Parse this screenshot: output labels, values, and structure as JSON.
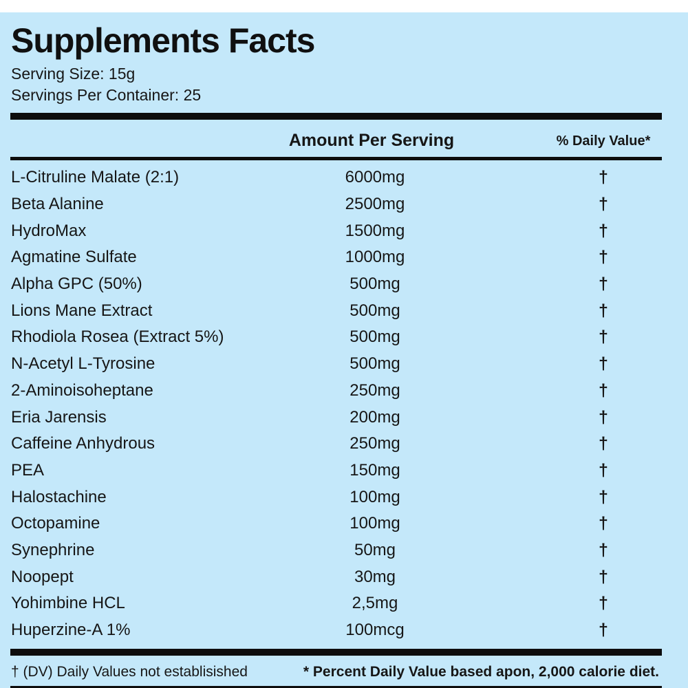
{
  "page": {
    "background_color": "#c4e8fa",
    "text_color": "#161616",
    "rule_color": "#0d0d0d"
  },
  "header": {
    "title": "Supplements Facts",
    "serving_size": "Serving Size: 15g",
    "servings_per_container": "Servings Per Container: 25"
  },
  "table": {
    "columns": {
      "amount_header": "Amount Per Serving",
      "dv_header": "% Daily Value*"
    },
    "rows": [
      {
        "name": "L-Citruline Malate (2:1)",
        "amount": "6000mg",
        "dv": "†"
      },
      {
        "name": "Beta Alanine",
        "amount": "2500mg",
        "dv": "†"
      },
      {
        "name": "HydroMax",
        "amount": "1500mg",
        "dv": "†"
      },
      {
        "name": "Agmatine Sulfate",
        "amount": "1000mg",
        "dv": "†"
      },
      {
        "name": "Alpha GPC (50%)",
        "amount": "500mg",
        "dv": "†"
      },
      {
        "name": "Lions Mane Extract",
        "amount": "500mg",
        "dv": "†"
      },
      {
        "name": "Rhodiola Rosea (Extract 5%)",
        "amount": "500mg",
        "dv": "†"
      },
      {
        "name": "N-Acetyl L-Tyrosine",
        "amount": "500mg",
        "dv": "†"
      },
      {
        "name": "2-Aminoisoheptane",
        "amount": "250mg",
        "dv": "†"
      },
      {
        "name": "Eria Jarensis",
        "amount": "200mg",
        "dv": "†"
      },
      {
        "name": "Caffeine Anhydrous",
        "amount": "250mg",
        "dv": "†"
      },
      {
        "name": "PEA",
        "amount": "150mg",
        "dv": "†"
      },
      {
        "name": "Halostachine",
        "amount": "100mg",
        "dv": "†"
      },
      {
        "name": "Octopamine",
        "amount": "100mg",
        "dv": "†"
      },
      {
        "name": "Synephrine",
        "amount": "50mg",
        "dv": "†"
      },
      {
        "name": "Noopept",
        "amount": "30mg",
        "dv": "†"
      },
      {
        "name": "Yohimbine HCL",
        "amount": "2,5mg",
        "dv": "†"
      },
      {
        "name": "Huperzine-A 1%",
        "amount": "100mcg",
        "dv": "†"
      }
    ]
  },
  "footer": {
    "left": "† (DV) Daily Values not establisished",
    "right": "* Percent Daily Value based apon, 2,000 calorie diet."
  }
}
